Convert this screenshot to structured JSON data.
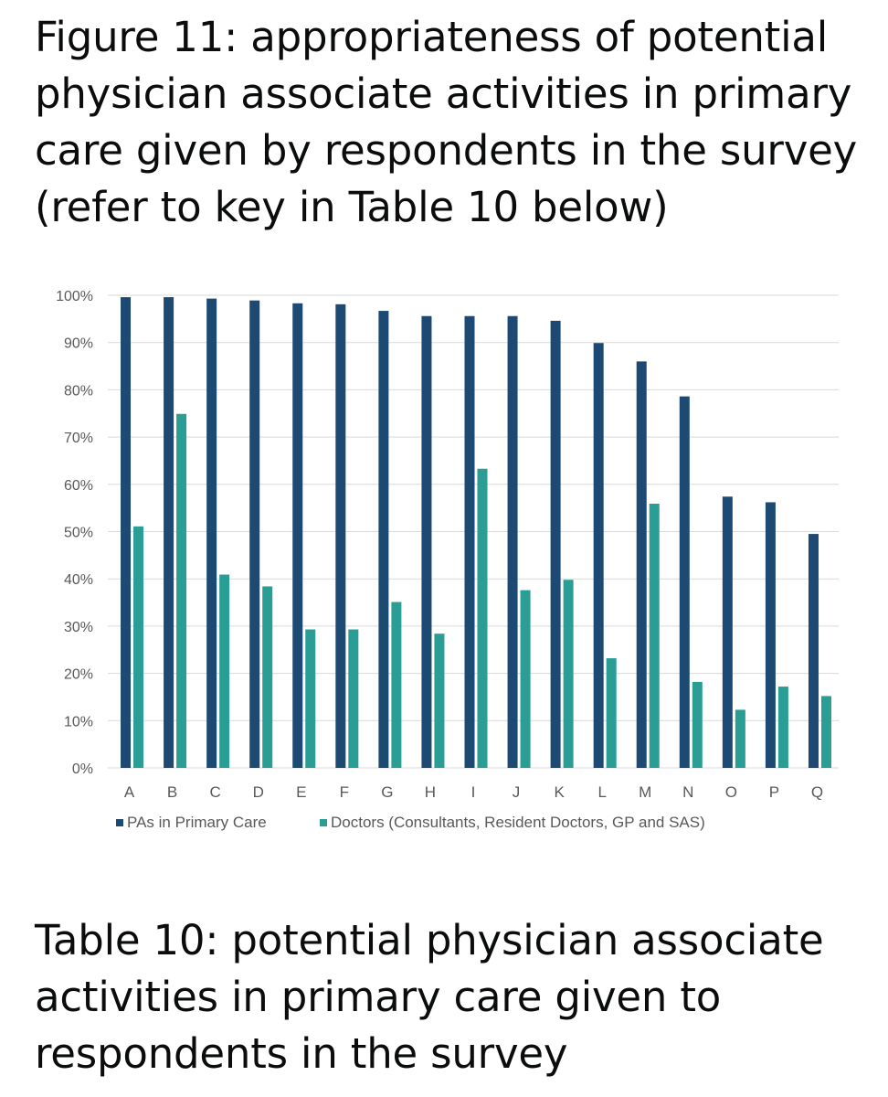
{
  "figure_title": "Figure 11: appropriateness of potential physician associate activities in primary care given by respondents in the survey (refer to key in Table 10 below)",
  "table_title": "Table 10:  potential physician associate activities in primary care given to respondents in the survey",
  "chart_data": {
    "type": "bar",
    "categories": [
      "A",
      "B",
      "C",
      "D",
      "E",
      "F",
      "G",
      "H",
      "I",
      "J",
      "K",
      "L",
      "M",
      "N",
      "O",
      "P",
      "Q"
    ],
    "series": [
      {
        "name": "PAs in Primary Care",
        "color": "#1d4a73",
        "values": [
          99.6,
          99.6,
          99.3,
          98.9,
          98.3,
          98.1,
          96.7,
          95.6,
          95.6,
          95.6,
          94.6,
          89.9,
          86.0,
          78.6,
          57.4,
          56.2,
          49.5
        ]
      },
      {
        "name": "Doctors (Consultants, Resident Doctors, GP and SAS)",
        "color": "#2a9d94",
        "values": [
          51.1,
          74.9,
          40.9,
          38.4,
          29.3,
          29.3,
          35.1,
          28.4,
          63.3,
          37.6,
          39.8,
          23.2,
          55.9,
          18.2,
          12.3,
          17.2,
          15.2
        ]
      }
    ],
    "y_ticks": [
      "0%",
      "10%",
      "20%",
      "30%",
      "40%",
      "50%",
      "60%",
      "70%",
      "80%",
      "90%",
      "100%"
    ],
    "ylim": [
      0,
      100
    ],
    "grid": true,
    "legend_position": "bottom"
  }
}
